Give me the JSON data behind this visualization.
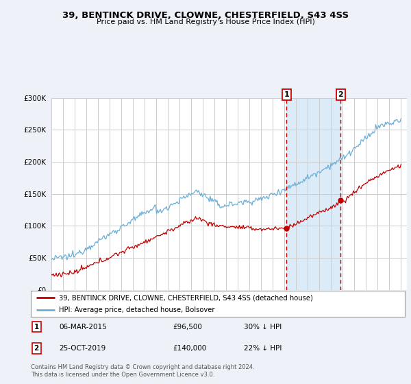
{
  "title": "39, BENTINCK DRIVE, CLOWNE, CHESTERFIELD, S43 4SS",
  "subtitle": "Price paid vs. HM Land Registry's House Price Index (HPI)",
  "ylabel_ticks": [
    "£0",
    "£50K",
    "£100K",
    "£150K",
    "£200K",
    "£250K",
    "£300K"
  ],
  "ytick_values": [
    0,
    50000,
    100000,
    150000,
    200000,
    250000,
    300000
  ],
  "ylim": [
    0,
    300000
  ],
  "xlim_start": 1995.0,
  "xlim_end": 2025.5,
  "marker1_x": 2015.18,
  "marker1_y": 96500,
  "marker2_x": 2019.82,
  "marker2_y": 140000,
  "legend_line1": "39, BENTINCK DRIVE, CLOWNE, CHESTERFIELD, S43 4SS (detached house)",
  "legend_line2": "HPI: Average price, detached house, Bolsover",
  "marker1_date": "06-MAR-2015",
  "marker1_price": "£96,500",
  "marker1_hpi": "30% ↓ HPI",
  "marker2_date": "25-OCT-2019",
  "marker2_price": "£140,000",
  "marker2_hpi": "22% ↓ HPI",
  "footer1": "Contains HM Land Registry data © Crown copyright and database right 2024.",
  "footer2": "This data is licensed under the Open Government Licence v3.0.",
  "hpi_color": "#6aaed6",
  "price_color": "#c00000",
  "background_color": "#eef2f8",
  "plot_bg": "#ffffff",
  "grid_color": "#cccccc",
  "dashed_line_color": "#cc0000",
  "span_color": "#d6e8f7"
}
